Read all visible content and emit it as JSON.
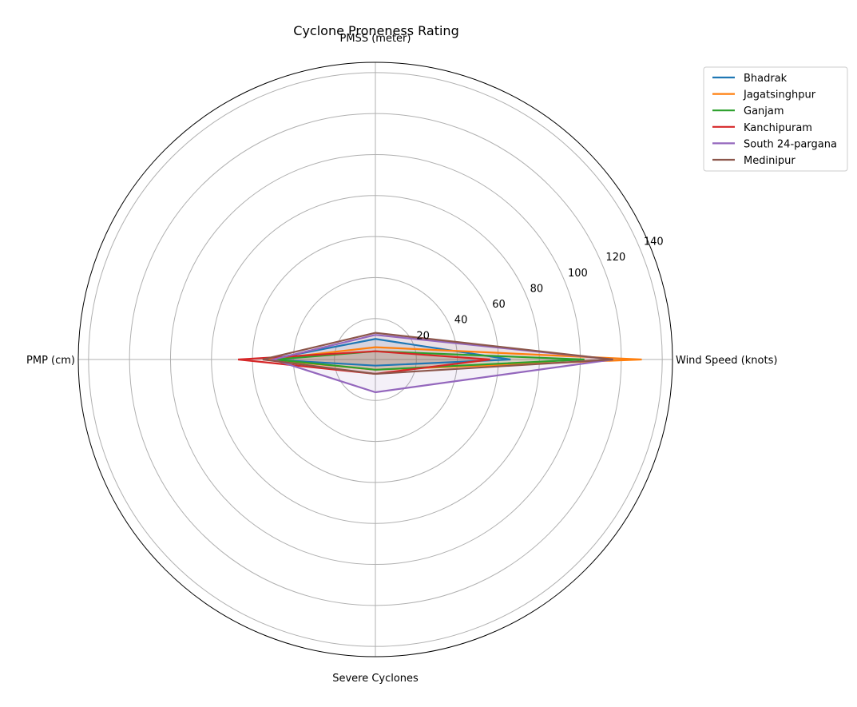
{
  "chart_data": {
    "type": "radar",
    "title": "Cyclone Proneness Rating",
    "axes": [
      "Wind Speed (knots)",
      "PMSS (meter)",
      "PMP (cm)",
      "Severe Cyclones"
    ],
    "rlim": [
      0,
      145
    ],
    "rticks": [
      20,
      40,
      60,
      80,
      100,
      120,
      140
    ],
    "grid": true,
    "legend": "top-right",
    "series": [
      {
        "name": "Bhadrak",
        "values": [
          66,
          10,
          52,
          3
        ],
        "color": "#1f77b4"
      },
      {
        "name": "Jagatsinghpur",
        "values": [
          130,
          6,
          53,
          5
        ],
        "color": "#ff7f0e"
      },
      {
        "name": "Ganjam",
        "values": [
          102,
          4,
          49,
          5
        ],
        "color": "#2ca02c"
      },
      {
        "name": "Kanchipuram",
        "values": [
          56,
          4,
          67,
          7
        ],
        "color": "#d62728"
      },
      {
        "name": "South 24-pargana",
        "values": [
          116,
          12,
          50,
          16
        ],
        "color": "#9467bd"
      },
      {
        "name": "Medinipur",
        "values": [
          116,
          13,
          55,
          7
        ],
        "color": "#8c564b"
      }
    ]
  }
}
